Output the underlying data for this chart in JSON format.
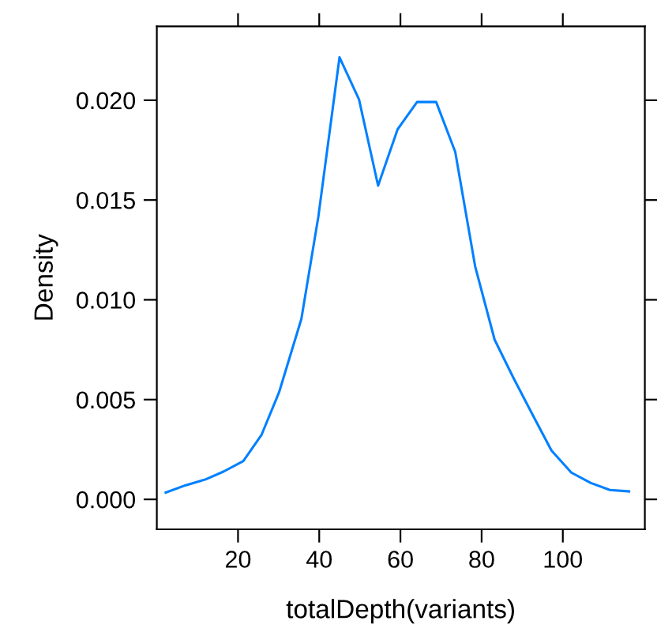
{
  "chart_data": {
    "type": "line",
    "xlabel": "totalDepth(variants)",
    "ylabel": "Density",
    "x": [
      2.2,
      7.0,
      12.0,
      16.5,
      21.3,
      25.8,
      30.1,
      35.6,
      39.8,
      45.0,
      49.8,
      54.5,
      59.3,
      64.1,
      68.8,
      73.5,
      78.4,
      83.2,
      87.8,
      92.4,
      97.2,
      102.1,
      106.9,
      111.6,
      116.3
    ],
    "series": [
      {
        "color": "#0080ff",
        "values": [
          0.00034,
          0.0007,
          0.001,
          0.0014,
          0.00192,
          0.00324,
          0.00536,
          0.00904,
          0.01419,
          0.02215,
          0.02004,
          0.01572,
          0.01854,
          0.01991,
          0.01991,
          0.01741,
          0.01168,
          0.008,
          0.0061,
          0.0043,
          0.00245,
          0.00134,
          0.00082,
          0.00047,
          0.0004
        ]
      }
    ],
    "xlim": [
      0,
      120.2
    ],
    "ylim": [
      -0.0015,
      0.0237
    ],
    "xticks": [
      20,
      40,
      60,
      80,
      100
    ],
    "yticks": [
      {
        "value": 0,
        "label": "0.000"
      },
      {
        "value": 0.005,
        "label": "0.005"
      },
      {
        "value": 0.01,
        "label": "0.010"
      },
      {
        "value": 0.015,
        "label": "0.015"
      },
      {
        "value": 0.02,
        "label": "0.020"
      }
    ],
    "grid": false,
    "legend": false
  }
}
